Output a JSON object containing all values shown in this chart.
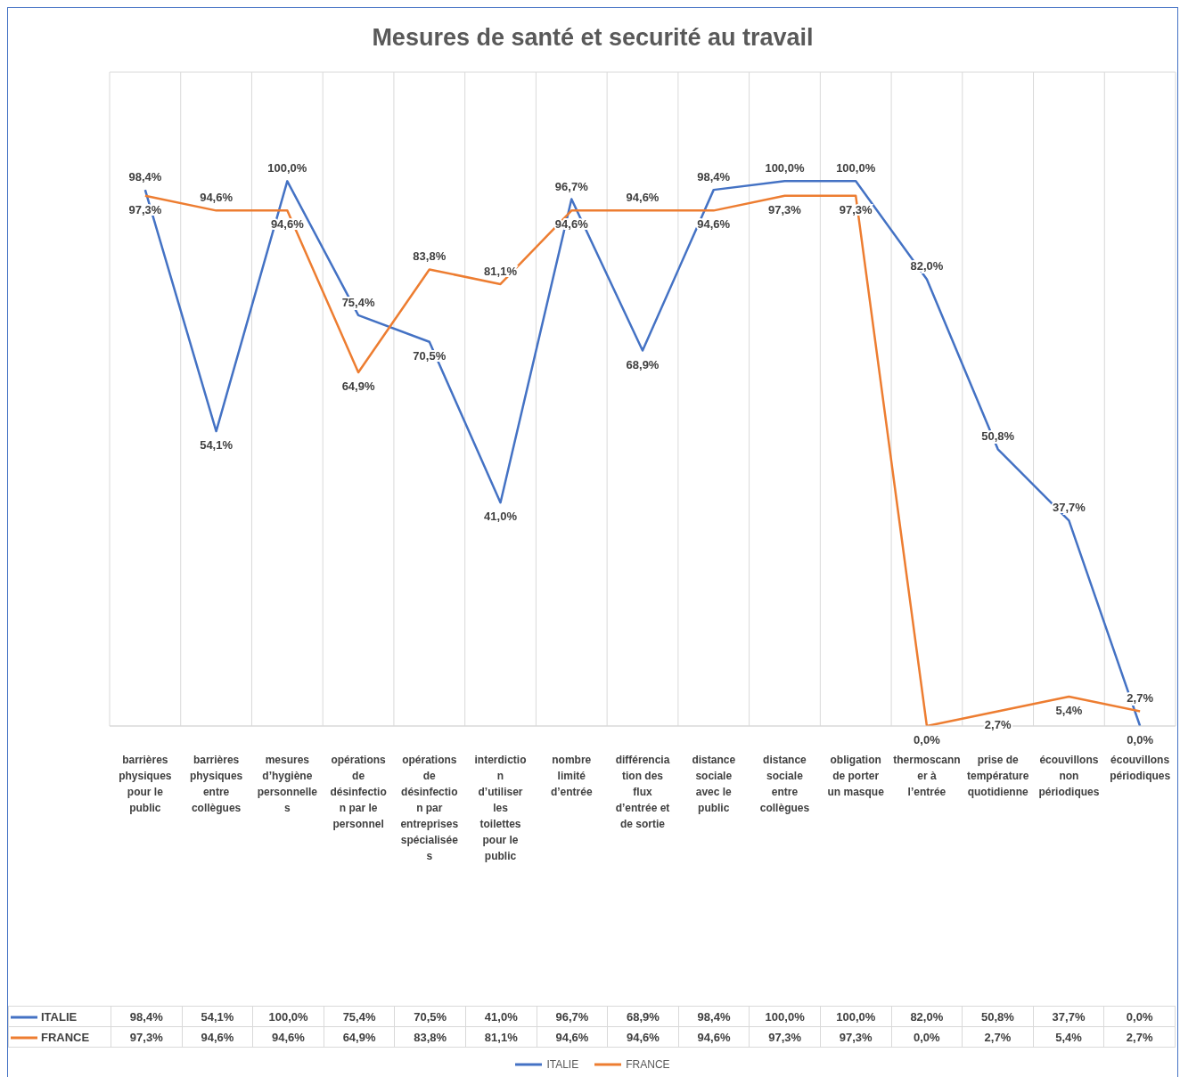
{
  "chart_data": {
    "type": "line",
    "title": "Mesures de santé et securité au travail",
    "categories": [
      "barrières physiques pour le public",
      "barrières physiques entre collègues",
      "mesures d’hygiène personnelles",
      "opérations de désinfection par le personnel",
      "opérations de désinfection par entreprises spécialisées",
      "interdiction d’utiliser les toilettes pour le public",
      "nombre limité d’entrée",
      "différenciation des flux d’entrée et de sortie",
      "distance sociale avec le public",
      "distance sociale entre collègues",
      "obligation de porter un masque",
      "thermoscanner à l’entrée",
      "prise de température quotidienne",
      "écouvillons non périodiques",
      "écouvillons périodiques"
    ],
    "series": [
      {
        "name": "ITALIE",
        "color": "#4472c4",
        "values": [
          98.4,
          54.1,
          100,
          75.4,
          70.5,
          41,
          96.7,
          68.9,
          98.4,
          100,
          100,
          82,
          50.8,
          37.7,
          0
        ],
        "value_labels": [
          "98,4%",
          "54,1%",
          "100,0%",
          "75,4%",
          "70,5%",
          "41,0%",
          "96,7%",
          "68,9%",
          "98,4%",
          "100,0%",
          "100,0%",
          "82,0%",
          "50,8%",
          "37,7%",
          "0,0%"
        ]
      },
      {
        "name": "FRANCE",
        "color": "#ed7d31",
        "values": [
          97.3,
          94.6,
          94.6,
          64.9,
          83.8,
          81.1,
          94.6,
          94.6,
          94.6,
          97.3,
          97.3,
          0,
          2.7,
          5.4,
          2.7
        ],
        "value_labels": [
          "97,3%",
          "94,6%",
          "94,6%",
          "64,9%",
          "83,8%",
          "81,1%",
          "94,6%",
          "94,6%",
          "94,6%",
          "97,3%",
          "97,3%",
          "0,0%",
          "2,7%",
          "5,4%",
          "2,7%"
        ]
      }
    ],
    "ylim": [
      0,
      120
    ],
    "tick_labels": "x",
    "grid": true,
    "legend": "bottom",
    "marker": "none",
    "line_style": "solid"
  }
}
